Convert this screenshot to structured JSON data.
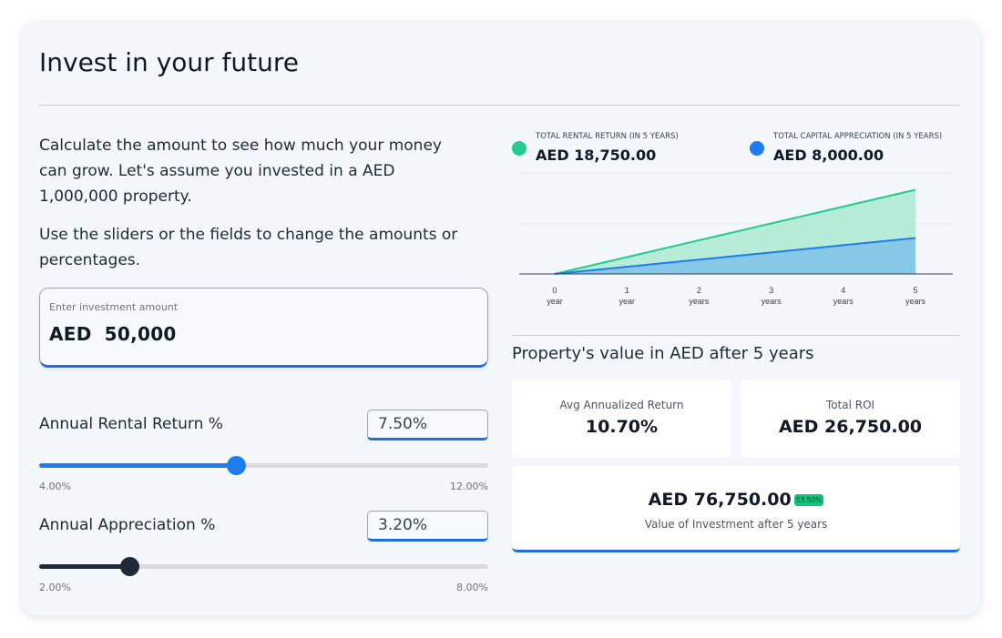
{
  "title": "Invest in your future",
  "intro": {
    "p1": "Calculate the amount to see how much your money can grow. Let's assume you invested in a AED 1,000,000 property.",
    "p2": "Use the sliders or the fields to change the amounts or percentages."
  },
  "investment": {
    "label": "Enter investment amount",
    "currency": "AED",
    "value": "50,000"
  },
  "rental": {
    "label": "Annual Rental Return %",
    "value": "7.50%",
    "min": "4.00%",
    "max": "12.00%",
    "level": 0.4375,
    "color": "#1e7cf2"
  },
  "appreciation": {
    "label": "Annual Appreciation %",
    "value": "3.20%",
    "min": "2.00%",
    "max": "8.00%",
    "level": 0.2,
    "color": "#1f2937"
  },
  "legend": {
    "rental": {
      "caption": "TOTAL RENTAL RETURN (IN 5 YEARS)",
      "value": "AED 18,750.00",
      "color": "#22cc8c"
    },
    "appreciation": {
      "caption": "TOTAL CAPITAL APPRECIATION (IN 5 YEARS)",
      "value": "AED 8,000.00",
      "color": "#1e7cf2"
    }
  },
  "chart_data": {
    "type": "area",
    "x": [
      0,
      1,
      2,
      3,
      4,
      5
    ],
    "xtick_numbers": [
      "0",
      "1",
      "2",
      "3",
      "4",
      "5"
    ],
    "xtick_units": [
      "year",
      "year",
      "years",
      "years",
      "years",
      "years"
    ],
    "series": [
      {
        "values": [
          0,
          3750,
          7500,
          11250,
          15000,
          18750
        ],
        "color": "#22cc8c",
        "fill": "#b7ecd9"
      },
      {
        "values": [
          0,
          1600,
          3200,
          4800,
          6400,
          8000
        ],
        "color": "#1e7cf2",
        "fill": "#86c8e6"
      }
    ],
    "ylim": [
      0,
      22500
    ],
    "grid": true
  },
  "results": {
    "section_title": "Property's value in AED after 5 years",
    "avg_label": "Avg Annualized Return",
    "avg_value": "10.70%",
    "roi_label": "Total ROI",
    "roi_value": "AED 26,750.00",
    "total_value": "AED 76,750.00",
    "total_badge": "53.50%",
    "total_label": "Value of Investment after 5 years"
  }
}
